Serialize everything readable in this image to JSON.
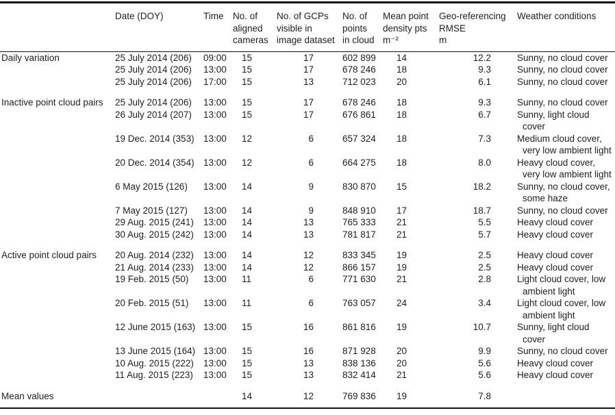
{
  "table": {
    "columns": [
      {
        "name": "group",
        "lines": [
          ""
        ]
      },
      {
        "name": "date",
        "lines": [
          "Date (DOY)"
        ]
      },
      {
        "name": "time",
        "lines": [
          "Time"
        ]
      },
      {
        "name": "cameras",
        "lines": [
          "No. of",
          "aligned",
          "cameras"
        ]
      },
      {
        "name": "gcps",
        "lines": [
          "No. of GCPs",
          "visible in",
          "image dataset"
        ]
      },
      {
        "name": "points",
        "lines": [
          "No. of",
          "points",
          "in cloud"
        ]
      },
      {
        "name": "density",
        "lines": [
          "Mean point",
          "density pts",
          "m⁻²"
        ]
      },
      {
        "name": "rmse",
        "lines": [
          "Geo-referencing",
          "RMSE",
          "m"
        ]
      },
      {
        "name": "weather",
        "lines": [
          "Weather conditions"
        ]
      }
    ],
    "sections": [
      {
        "label": "Daily variation",
        "rows": [
          {
            "date": "25 July 2014 (206)",
            "time": "09:00",
            "cameras": "15",
            "gcps": "17",
            "points": "602 899",
            "density": "14",
            "rmse": "12.2",
            "weather": [
              "Sunny, no cloud cover"
            ]
          },
          {
            "date": "25 July 2014 (206)",
            "time": "13:00",
            "cameras": "15",
            "gcps": "17",
            "points": "678 246",
            "density": "18",
            "rmse": "9.3",
            "weather": [
              "Sunny, no cloud cover"
            ]
          },
          {
            "date": "25 July 2014 (206)",
            "time": "17:00",
            "cameras": "15",
            "gcps": "13",
            "points": "712 023",
            "density": "20",
            "rmse": "6.1",
            "weather": [
              "Sunny, no cloud cover"
            ]
          }
        ]
      },
      {
        "label": "Inactive point cloud pairs",
        "rows": [
          {
            "date": "25 July 2014 (206)",
            "time": "13:00",
            "cameras": "15",
            "gcps": "17",
            "points": "678 246",
            "density": "18",
            "rmse": "9.3",
            "weather": [
              "Sunny, no cloud cover"
            ]
          },
          {
            "date": "26 July 2014 (207)",
            "time": "13:00",
            "cameras": "15",
            "gcps": "17",
            "points": "676 861",
            "density": "18",
            "rmse": "6.7",
            "weather": [
              "Sunny, light cloud",
              "cover"
            ]
          },
          {
            "date": "19 Dec. 2014 (353)",
            "time": "13:00",
            "cameras": "12",
            "gcps": "6",
            "points": "657 324",
            "density": "18",
            "rmse": "7.3",
            "weather": [
              "Medium cloud cover,",
              "very low ambient light"
            ]
          },
          {
            "date": "20 Dec. 2014 (354)",
            "time": "13:00",
            "cameras": "12",
            "gcps": "6",
            "points": "664 275",
            "density": "18",
            "rmse": "8.0",
            "weather": [
              "Heavy cloud cover,",
              "very low ambient light"
            ]
          },
          {
            "date": "6 May 2015 (126)",
            "time": "13:00",
            "cameras": "14",
            "gcps": "9",
            "points": "830 870",
            "density": "15",
            "rmse": "18.2",
            "weather": [
              "Sunny, no cloud cover,",
              "some haze"
            ]
          },
          {
            "date": "7 May 2015 (127)",
            "time": "13:00",
            "cameras": "14",
            "gcps": "9",
            "points": "848 910",
            "density": "17",
            "rmse": "18.7",
            "weather": [
              "Sunny, no cloud cover"
            ]
          },
          {
            "date": "29 Aug. 2015 (241)",
            "time": "13:00",
            "cameras": "14",
            "gcps": "13",
            "points": "765 333",
            "density": "21",
            "rmse": "5.5",
            "weather": [
              "Heavy cloud cover"
            ]
          },
          {
            "date": "30 Aug. 2015 (242)",
            "time": "13:00",
            "cameras": "14",
            "gcps": "13",
            "points": "781 817",
            "density": "21",
            "rmse": "5.7",
            "weather": [
              "Heavy cloud cover"
            ]
          }
        ]
      },
      {
        "label": "Active point cloud pairs",
        "rows": [
          {
            "date": "20 Aug. 2014 (232)",
            "time": "13:00",
            "cameras": "14",
            "gcps": "12",
            "points": "833 345",
            "density": "19",
            "rmse": "2.5",
            "weather": [
              "Heavy cloud cover"
            ]
          },
          {
            "date": "21 Aug. 2014 (233)",
            "time": "13:00",
            "cameras": "14",
            "gcps": "12",
            "points": "866 157",
            "density": "19",
            "rmse": "2.5",
            "weather": [
              "Heavy cloud cover"
            ]
          },
          {
            "date": "19 Feb. 2015 (50)",
            "time": "13:00",
            "cameras": "11",
            "gcps": "6",
            "points": "771 630",
            "density": "21",
            "rmse": "2.8",
            "weather": [
              "Light cloud cover, low",
              "ambient light"
            ]
          },
          {
            "date": "20 Feb. 2015 (51)",
            "time": "13:00",
            "cameras": "11",
            "gcps": "6",
            "points": "763 057",
            "density": "24",
            "rmse": "3.4",
            "weather": [
              "Light cloud cover, low",
              "ambient light"
            ]
          },
          {
            "date": "12 June 2015 (163)",
            "time": "13:00",
            "cameras": "15",
            "gcps": "16",
            "points": "861 816",
            "density": "19",
            "rmse": "10.7",
            "weather": [
              "Sunny, light cloud",
              "cover"
            ]
          },
          {
            "date": "13 June 2015 (164)",
            "time": "13:00",
            "cameras": "15",
            "gcps": "16",
            "points": "871 928",
            "density": "20",
            "rmse": "9.9",
            "weather": [
              "Sunny, no cloud cover"
            ]
          },
          {
            "date": "10 Aug. 2015 (222)",
            "time": "13:00",
            "cameras": "15",
            "gcps": "13",
            "points": "838 136",
            "density": "20",
            "rmse": "5.6",
            "weather": [
              "Heavy cloud cover"
            ]
          },
          {
            "date": "11 Aug. 2015 (223)",
            "time": "13:00",
            "cameras": "15",
            "gcps": "13",
            "points": "832 414",
            "density": "21",
            "rmse": "5.6",
            "weather": [
              "Heavy cloud cover"
            ]
          }
        ]
      },
      {
        "label": "Mean values",
        "rows": [
          {
            "date": "",
            "time": "",
            "cameras": "14",
            "gcps": "12",
            "points": "769 836",
            "density": "19",
            "rmse": "7.8",
            "weather": []
          }
        ]
      }
    ]
  }
}
